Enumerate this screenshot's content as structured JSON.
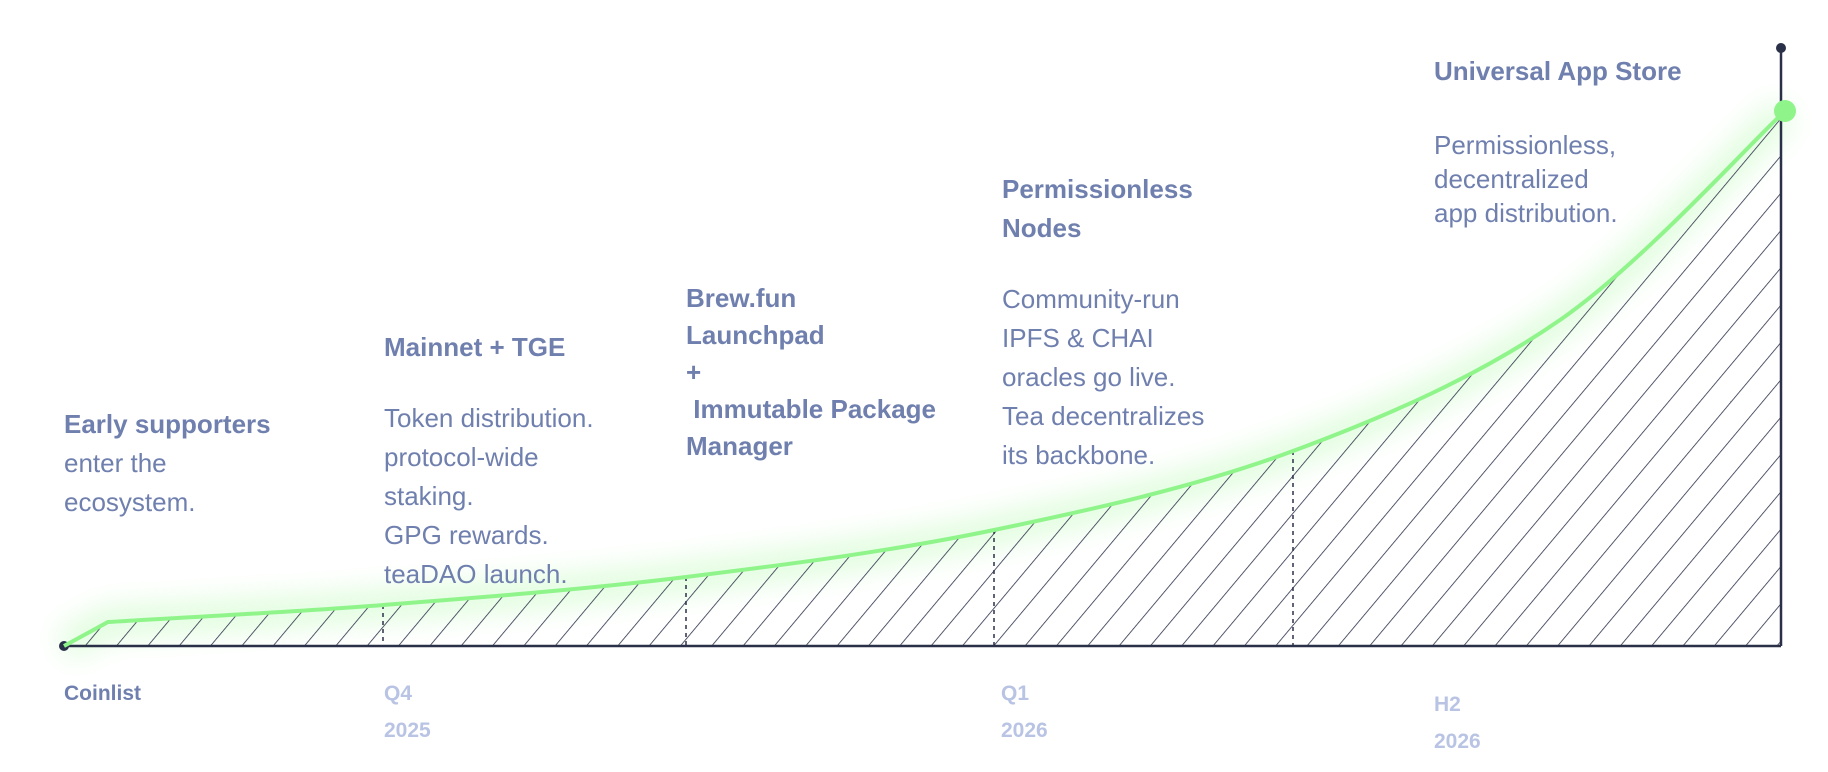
{
  "milestones": [
    {
      "title": "Early supporters",
      "description": [
        "enter the",
        "ecosystem."
      ],
      "label": [
        "Coinlist"
      ]
    },
    {
      "title": "Mainnet + TGE",
      "description": [
        "Token distribution.",
        "protocol-wide",
        "staking.",
        "GPG rewards.",
        "teaDAO launch."
      ],
      "label": [
        "Q4",
        "2025"
      ]
    },
    {
      "title_lines": [
        "Brew.fun",
        "Launchpad",
        "+",
        " Immutable Package",
        "Manager"
      ]
    },
    {
      "title_lines": [
        "Permissionless",
        "Nodes"
      ],
      "description": [
        "Community-run",
        "IPFS & CHAI",
        "oracles go live.",
        "Tea decentralizes",
        "its backbone."
      ],
      "label": [
        "Q1",
        "2026"
      ]
    },
    {
      "title": "Universal App Store",
      "description": [
        "Permissionless,",
        "decentralized",
        "app distribution."
      ],
      "label": [
        "H2",
        "2026"
      ]
    }
  ],
  "colors": {
    "text": "#6f7fae",
    "label_light": "#b9c4e4",
    "axis": "#2b3049",
    "curve": "#8ff58a"
  }
}
